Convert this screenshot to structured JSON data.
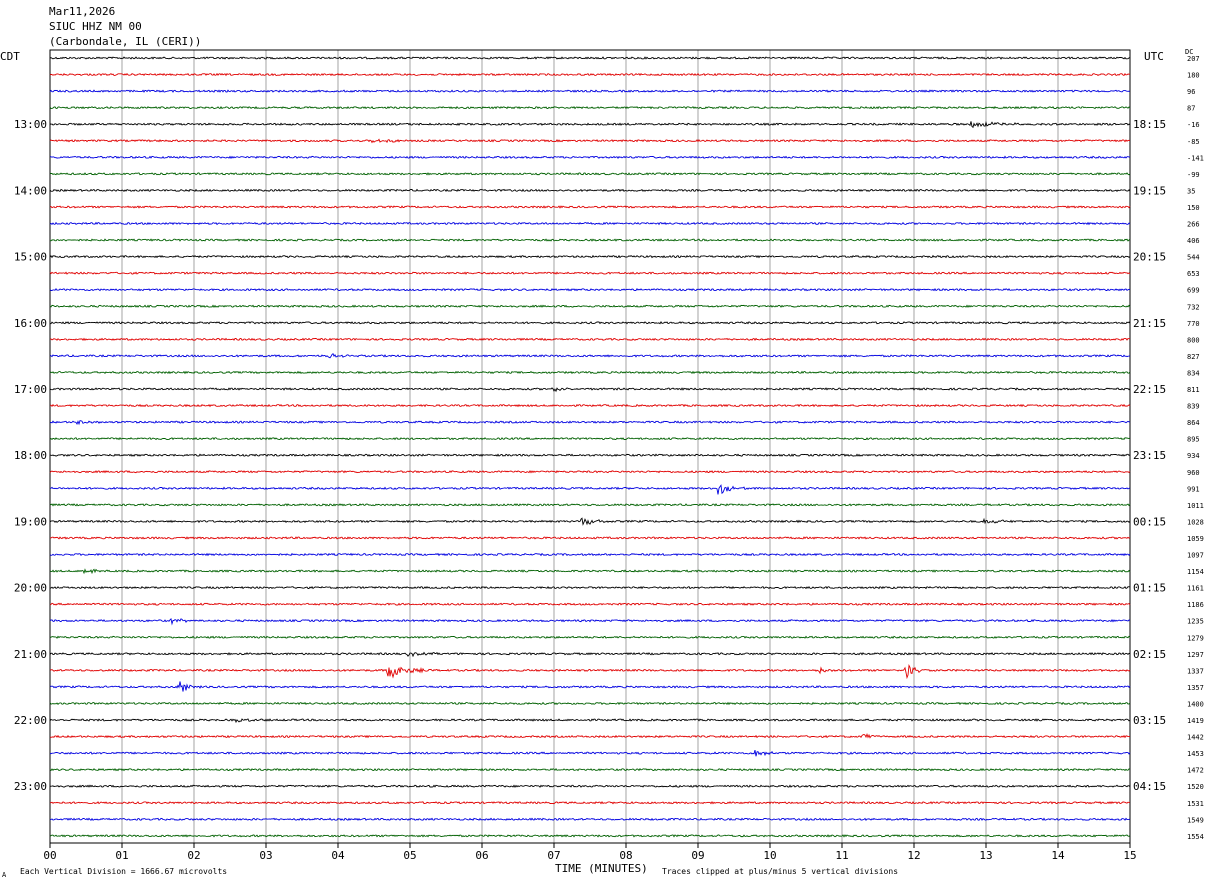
{
  "header": {
    "date": "Mar11,2026",
    "station": "SIUC HHZ NM 00",
    "location": "(Carbondale, IL (CERI))"
  },
  "timezones": {
    "left": "CDT",
    "right": "UTC"
  },
  "dc_label": "DC",
  "footer": {
    "scale_note": "Each Vertical Division = 1666.67 microvolts",
    "time_axis_label": "TIME (MINUTES)",
    "clip_note": "Traces clipped at plus/minus 5 vertical divisions",
    "corner_mark": "A"
  },
  "colors": {
    "trace_cycle": [
      "#000000",
      "#e00000",
      "#0000e0",
      "#006000"
    ],
    "grid": "#000000",
    "background": "#ffffff"
  },
  "chart_data": {
    "type": "line",
    "title": "",
    "xlabel": "TIME (MINUTES)",
    "xlim": [
      0,
      15
    ],
    "x_ticks": [
      "00",
      "01",
      "02",
      "03",
      "04",
      "05",
      "06",
      "07",
      "08",
      "09",
      "10",
      "11",
      "12",
      "13",
      "14",
      "15"
    ],
    "rows_per_hour": 4,
    "left_hour_labels": [
      "13:00",
      "14:00",
      "15:00",
      "16:00",
      "17:00",
      "18:00",
      "19:00",
      "20:00",
      "21:00",
      "22:00",
      "23:00"
    ],
    "right_hour_labels": [
      "18:15",
      "19:15",
      "20:15",
      "21:15",
      "22:15",
      "23:15",
      "00:15",
      "01:15",
      "02:15",
      "03:15",
      "04:15"
    ],
    "first_labeled_row": 4,
    "dc_offsets": [
      207,
      180,
      96,
      87,
      -16,
      -85,
      -141,
      -99,
      35,
      150,
      266,
      406,
      544,
      653,
      699,
      732,
      770,
      800,
      827,
      834,
      811,
      839,
      864,
      895,
      934,
      960,
      991,
      1011,
      1028,
      1059,
      1097,
      1154,
      1161,
      1186,
      1235,
      1279,
      1297,
      1337,
      1357,
      1400,
      1419,
      1442,
      1453,
      1472,
      1520,
      1531,
      1549,
      1554
    ],
    "events": [
      {
        "row": 4,
        "minute": 12.8,
        "amplitude": 3,
        "duration": 0.9
      },
      {
        "row": 5,
        "minute": 4.5,
        "amplitude": 2,
        "duration": 0.6
      },
      {
        "row": 26,
        "minute": 9.3,
        "amplitude": 7,
        "duration": 0.4
      },
      {
        "row": 28,
        "minute": 7.4,
        "amplitude": 5,
        "duration": 0.4
      },
      {
        "row": 28,
        "minute": 13.0,
        "amplitude": 2.5,
        "duration": 0.5
      },
      {
        "row": 37,
        "minute": 4.7,
        "amplitude": 9,
        "duration": 0.6
      },
      {
        "row": 37,
        "minute": 11.9,
        "amplitude": 8,
        "duration": 0.3
      },
      {
        "row": 37,
        "minute": 10.7,
        "amplitude": 3,
        "duration": 0.3
      },
      {
        "row": 38,
        "minute": 1.8,
        "amplitude": 6,
        "duration": 0.4
      },
      {
        "row": 40,
        "minute": 2.6,
        "amplitude": 2.5,
        "duration": 0.4
      },
      {
        "row": 42,
        "minute": 9.8,
        "amplitude": 3.5,
        "duration": 0.4
      },
      {
        "row": 41,
        "minute": 11.3,
        "amplitude": 2.5,
        "duration": 0.4
      },
      {
        "row": 20,
        "minute": 7.0,
        "amplitude": 2,
        "duration": 0.4
      },
      {
        "row": 22,
        "minute": 0.4,
        "amplitude": 2.5,
        "duration": 0.4
      },
      {
        "row": 34,
        "minute": 1.7,
        "amplitude": 2.5,
        "duration": 0.4
      },
      {
        "row": 31,
        "minute": 0.5,
        "amplitude": 2.5,
        "duration": 0.3
      },
      {
        "row": 18,
        "minute": 3.9,
        "amplitude": 2.5,
        "duration": 0.4
      },
      {
        "row": 36,
        "minute": 5.0,
        "amplitude": 2,
        "duration": 0.5
      }
    ]
  }
}
